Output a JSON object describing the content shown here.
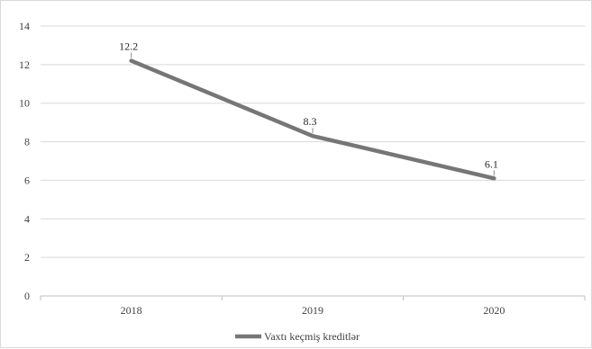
{
  "chart_data": {
    "type": "line",
    "categories": [
      "2018",
      "2019",
      "2020"
    ],
    "series": [
      {
        "name": "Vaxtı keçmiş kreditlər",
        "values": [
          12.2,
          8.3,
          6.1
        ],
        "data_labels": [
          "12.2",
          "8.3",
          "6.1"
        ]
      }
    ],
    "ylim": [
      0,
      14
    ],
    "yticks": [
      0,
      2,
      4,
      6,
      8,
      10,
      12,
      14
    ],
    "grid": true,
    "legend_position": "bottom",
    "colors": {
      "line": "#767676",
      "grid": "#d9d9d9",
      "axis": "#bfbfbf",
      "text": "#404040"
    }
  }
}
